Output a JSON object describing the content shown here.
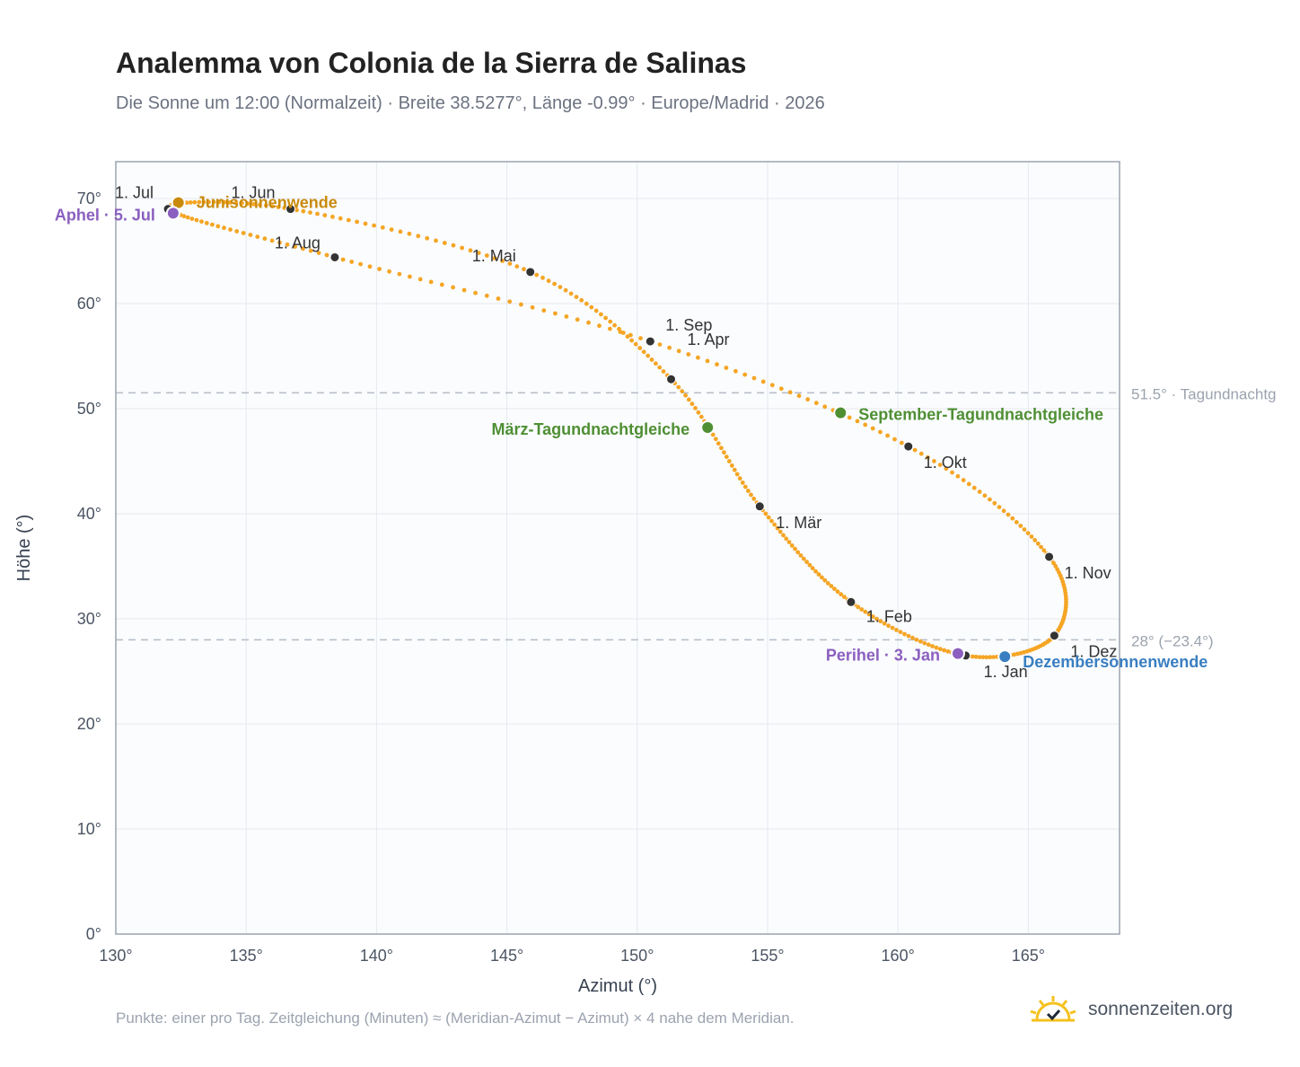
{
  "title": "Analemma von Colonia de la Sierra de Salinas",
  "subtitle": "Die Sonne um 12:00 (Normalzeit) · Breite 38.5277°, Länge -0.99° · Europe/Madrid · 2026",
  "footnote": "Punkte: einer pro Tag. Zeitgleichung (Minuten) ≈ (Meridian-Azimut − Azimut) × 4 nahe dem Meridian.",
  "brand": {
    "name": "sonnenzeiten.org",
    "logo_icon": "sun-check-icon"
  },
  "chart_data": {
    "type": "scatter",
    "xlabel": "Azimut (°)",
    "ylabel": "Höhe (°)",
    "xlim": [
      130,
      168.5
    ],
    "ylim": [
      0,
      73.5
    ],
    "xticks": [
      130,
      135,
      140,
      145,
      150,
      155,
      160,
      165
    ],
    "yticks": [
      0,
      10,
      20,
      30,
      40,
      50,
      60,
      70
    ],
    "tick_suffix": "°",
    "grid": true,
    "curve_color": "#f5a524",
    "month_markers": [
      {
        "label": "1. Jan",
        "x": 162.6,
        "y": 26.5
      },
      {
        "label": "1. Feb",
        "x": 158.2,
        "y": 31.6
      },
      {
        "label": "1. Mär",
        "x": 154.7,
        "y": 40.7
      },
      {
        "label": "1. Apr",
        "x": 151.3,
        "y": 52.8
      },
      {
        "label": "1. Mai",
        "x": 145.9,
        "y": 63.0
      },
      {
        "label": "1. Jun",
        "x": 136.7,
        "y": 69.0
      },
      {
        "label": "1. Jul",
        "x": 132.0,
        "y": 69.0
      },
      {
        "label": "1. Aug",
        "x": 138.4,
        "y": 64.4
      },
      {
        "label": "1. Sep",
        "x": 150.5,
        "y": 56.4
      },
      {
        "label": "1. Okt",
        "x": 160.4,
        "y": 46.4
      },
      {
        "label": "1. Nov",
        "x": 165.8,
        "y": 35.9
      },
      {
        "label": "1. Dez",
        "x": 166.0,
        "y": 28.4
      }
    ],
    "events": [
      {
        "label": "Junisonnenwende",
        "x": 132.4,
        "y": 69.6,
        "color": "#c98a0c"
      },
      {
        "label": "Aphel · 5. Jul",
        "x": 132.2,
        "y": 68.6,
        "color": "#8b5fbf"
      },
      {
        "label": "März-Tagundnachtgleiche",
        "x": 152.7,
        "y": 48.2,
        "color": "#4f8f34"
      },
      {
        "label": "September-Tagundnachtgleiche",
        "x": 157.8,
        "y": 49.6,
        "color": "#4f8f34"
      },
      {
        "label": "Perihel · 3. Jan",
        "x": 162.3,
        "y": 26.7,
        "color": "#8b5fbf"
      },
      {
        "label": "Dezembersonnenwende",
        "x": 164.1,
        "y": 26.4,
        "color": "#3a7fc1"
      }
    ],
    "reference_lines": [
      {
        "y": 51.5,
        "label": "51.5° · Tagundnachtg"
      },
      {
        "y": 28.0,
        "label": "28° (−23.4°)"
      }
    ]
  }
}
